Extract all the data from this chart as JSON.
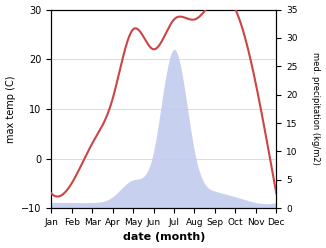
{
  "months": [
    "Jan",
    "Feb",
    "Mar",
    "Apr",
    "May",
    "Jun",
    "Jul",
    "Aug",
    "Sep",
    "Oct",
    "Nov",
    "Dec"
  ],
  "temp_C": [
    -7,
    -5,
    3,
    12,
    26,
    22,
    28,
    28,
    32,
    30,
    15,
    -7
  ],
  "precip_kg": [
    1,
    1,
    1,
    2,
    5,
    10,
    28,
    10,
    3,
    2,
    1,
    1
  ],
  "temp_ylim": [
    -10,
    30
  ],
  "precip_ylim": [
    0,
    35
  ],
  "temp_yticks": [
    -10,
    0,
    10,
    20,
    30
  ],
  "precip_yticks": [
    0,
    5,
    10,
    15,
    20,
    25,
    30,
    35
  ],
  "temp_color": "#cc4444",
  "precip_fill_color": "#c8d0f0",
  "xlabel": "date (month)",
  "ylabel_left": "max temp (C)",
  "ylabel_right": "med. precipitation (kg/m2)",
  "bg_color": "#ffffff",
  "grid_color": "#cccccc"
}
